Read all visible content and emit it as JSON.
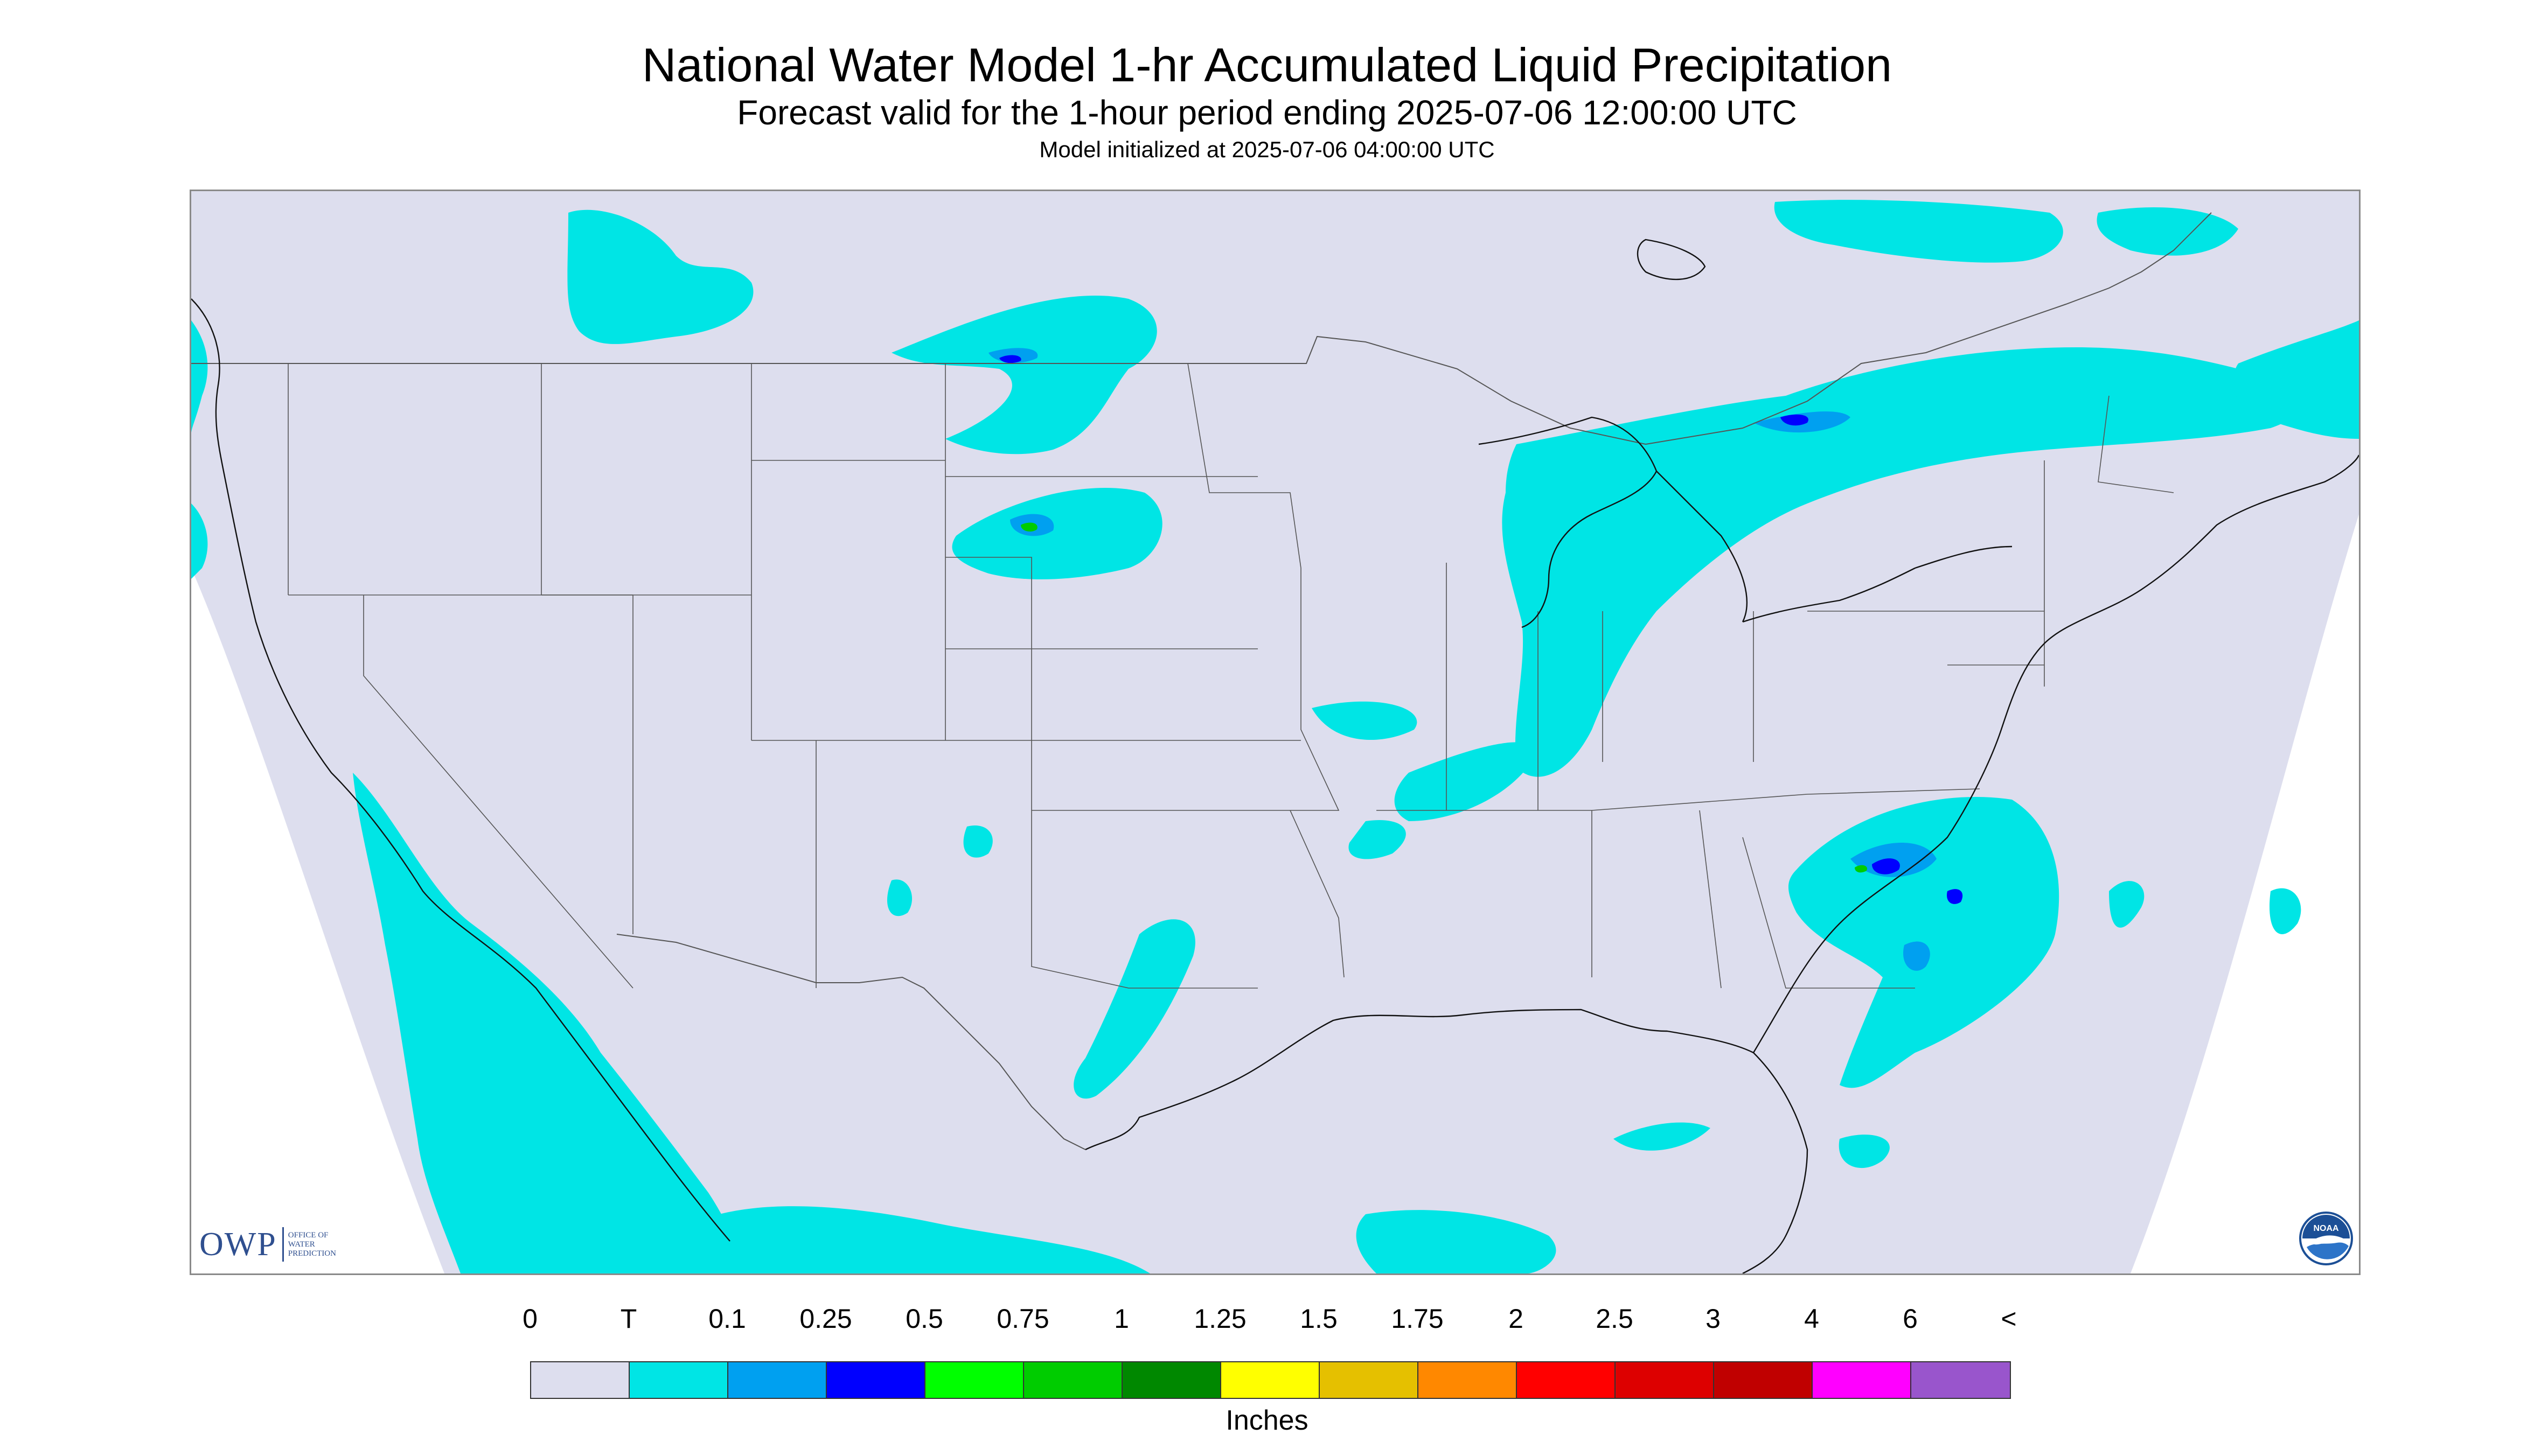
{
  "header": {
    "title": "National Water Model 1-hr Accumulated Liquid Precipitation",
    "subtitle": "Forecast valid for the 1-hour period ending 2025-07-06 12:00:00 UTC",
    "init_text": "Model initialized at 2025-07-06 04:00:00 UTC"
  },
  "map": {
    "background_color": "#dddeee",
    "outside_domain_color": "#ffffff",
    "boundary_color": "#555555",
    "coast_color": "#111111"
  },
  "logos": {
    "owp_letters": "OWP",
    "owp_text": "OFFICE OF\nWATER\nPREDICTION",
    "noaa_text": "NOAA"
  },
  "legend": {
    "labels": [
      "0",
      "T",
      "0.1",
      "0.25",
      "0.5",
      "0.75",
      "1",
      "1.25",
      "1.5",
      "1.75",
      "2",
      "2.5",
      "3",
      "4",
      "6",
      "<"
    ],
    "colors": [
      "#dddeee",
      "#00e5e5",
      "#00a0f0",
      "#0000ff",
      "#00ff00",
      "#00cc00",
      "#008800",
      "#ffff00",
      "#e5c000",
      "#ff8800",
      "#ff0000",
      "#dd0000",
      "#c00000",
      "#ff00ff",
      "#9955cc"
    ],
    "units": "Inches"
  }
}
